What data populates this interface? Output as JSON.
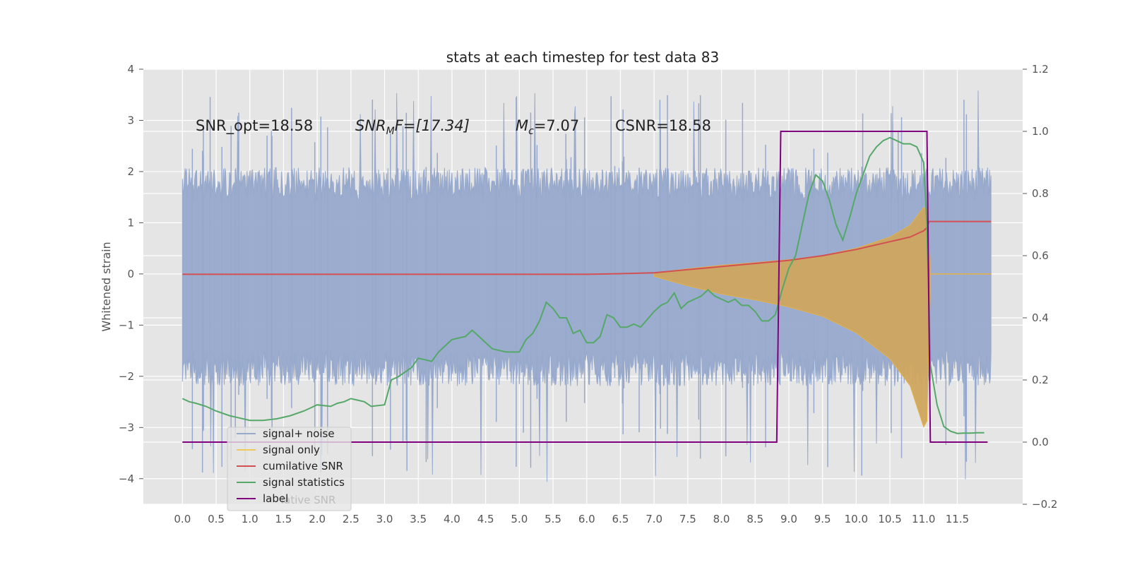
{
  "chart_data": {
    "type": "line",
    "title": "stats at each timestep for test data 83",
    "ylabel": "Whitened strain",
    "xlabel": "",
    "xlim": [
      -0.58,
      12.47
    ],
    "ylim": [
      -4.5,
      4.0
    ],
    "y2lim": [
      -0.2,
      1.2
    ],
    "x_ticks": [
      "0.0",
      "0.5",
      "1.0",
      "1.5",
      "2.0",
      "2.5",
      "3.0",
      "3.5",
      "4.0",
      "4.5",
      "5.0",
      "5.5",
      "6.0",
      "6.5",
      "7.0",
      "7.5",
      "8.0",
      "8.5",
      "9.0",
      "9.5",
      "10.0",
      "10.5",
      "11.0",
      "11.5"
    ],
    "y_ticks": [
      "4",
      "3",
      "2",
      "1",
      "0",
      "−1",
      "−2",
      "−3",
      "−4"
    ],
    "y2_ticks": [
      "1.2",
      "1.0",
      "0.8",
      "0.6",
      "0.4",
      "0.2",
      "0.0",
      "−0.2"
    ],
    "grid": true,
    "legend_position": "lower-left",
    "colors": {
      "noise": "#97a9cc",
      "signal": "#e6b142",
      "signal_fill": "#cfa55e",
      "cumulative": "#d25052",
      "statistics": "#55a868",
      "label": "#800080",
      "plot_bg": "#e5e5e5",
      "grid": "#ffffff"
    },
    "annotations": {
      "snr_opt": "SNR_opt=18.58",
      "snr_mf_base": "SNR",
      "snr_mf_sub": "M",
      "snr_mf_tail": "F=[17.34]",
      "mc_base": "M",
      "mc_sub": "c",
      "mc_tail": "=7.07",
      "csnr": "CSNR=18.58"
    },
    "noise_band": {
      "x_start": 0.0,
      "x_end": 12.0,
      "upper_typical": 1.9,
      "lower_typical": -2.0,
      "upper_max": 3.6,
      "lower_min": -4.1
    },
    "signal_envelope": {
      "x": [
        7.0,
        7.5,
        8.0,
        8.5,
        9.0,
        9.5,
        10.0,
        10.5,
        10.8,
        11.0,
        11.05,
        11.1
      ],
      "amplitude": [
        0.02,
        0.1,
        0.17,
        0.22,
        0.28,
        0.36,
        0.5,
        0.72,
        0.95,
        1.3,
        1.25,
        0.0
      ]
    },
    "series": [
      {
        "name": "cumilative SNR",
        "axis": "right",
        "x": [
          0,
          1,
          2,
          3,
          4,
          5,
          6,
          6.5,
          7.0,
          7.5,
          8.0,
          8.5,
          9.0,
          9.5,
          10.0,
          10.5,
          10.8,
          11.0,
          11.05,
          11.08,
          12.0
        ],
        "values": [
          0.54,
          0.54,
          0.54,
          0.54,
          0.54,
          0.54,
          0.54,
          0.542,
          0.545,
          0.555,
          0.565,
          0.575,
          0.585,
          0.6,
          0.62,
          0.645,
          0.66,
          0.68,
          0.69,
          0.71,
          0.71
        ]
      },
      {
        "name": "signal statistics",
        "axis": "right",
        "x": [
          0.0,
          0.1,
          0.2,
          0.35,
          0.5,
          0.7,
          0.8,
          1.0,
          1.2,
          1.4,
          1.6,
          1.8,
          1.9,
          2.0,
          2.2,
          2.3,
          2.4,
          2.5,
          2.7,
          2.8,
          3.0,
          3.1,
          3.2,
          3.4,
          3.5,
          3.7,
          3.8,
          4.0,
          4.2,
          4.3,
          4.4,
          4.6,
          4.8,
          5.0,
          5.1,
          5.2,
          5.3,
          5.4,
          5.5,
          5.6,
          5.7,
          5.8,
          5.9,
          6.0,
          6.1,
          6.2,
          6.3,
          6.4,
          6.5,
          6.6,
          6.7,
          6.8,
          7.0,
          7.1,
          7.2,
          7.3,
          7.4,
          7.5,
          7.6,
          7.7,
          7.8,
          7.9,
          8.0,
          8.1,
          8.2,
          8.3,
          8.4,
          8.5,
          8.6,
          8.7,
          8.8,
          8.9,
          9.0,
          9.1,
          9.2,
          9.3,
          9.4,
          9.5,
          9.6,
          9.7,
          9.8,
          9.9,
          10.0,
          10.1,
          10.2,
          10.3,
          10.4,
          10.5,
          10.6,
          10.7,
          10.8,
          10.9,
          11.0,
          11.05,
          11.1,
          11.2,
          11.3,
          11.4,
          11.5,
          11.6,
          11.7,
          11.8,
          11.9
        ],
        "values": [
          0.14,
          0.13,
          0.125,
          0.115,
          0.1,
          0.085,
          0.08,
          0.07,
          0.07,
          0.075,
          0.085,
          0.1,
          0.11,
          0.12,
          0.115,
          0.125,
          0.13,
          0.14,
          0.13,
          0.115,
          0.12,
          0.2,
          0.21,
          0.24,
          0.27,
          0.26,
          0.29,
          0.33,
          0.34,
          0.36,
          0.34,
          0.3,
          0.29,
          0.29,
          0.33,
          0.35,
          0.39,
          0.45,
          0.43,
          0.4,
          0.4,
          0.35,
          0.36,
          0.32,
          0.32,
          0.34,
          0.41,
          0.4,
          0.37,
          0.37,
          0.38,
          0.37,
          0.42,
          0.44,
          0.45,
          0.48,
          0.43,
          0.45,
          0.46,
          0.47,
          0.49,
          0.47,
          0.46,
          0.45,
          0.46,
          0.44,
          0.44,
          0.42,
          0.39,
          0.39,
          0.41,
          0.49,
          0.56,
          0.6,
          0.7,
          0.8,
          0.86,
          0.84,
          0.78,
          0.7,
          0.65,
          0.72,
          0.8,
          0.86,
          0.92,
          0.95,
          0.97,
          0.98,
          0.97,
          0.96,
          0.96,
          0.95,
          0.9,
          0.7,
          0.25,
          0.12,
          0.05,
          0.035,
          0.028,
          0.029,
          0.029,
          0.03,
          0.03
        ]
      },
      {
        "name": "label",
        "axis": "right",
        "x": [
          0.0,
          8.82,
          8.88,
          11.05,
          11.1,
          11.95
        ],
        "values": [
          0.0,
          0.0,
          1.0,
          1.0,
          0.0,
          0.0
        ]
      }
    ],
    "legend": [
      {
        "name": "signal+ noise",
        "color": "#97a9cc"
      },
      {
        "name": "signal only",
        "color": "#f0c857"
      },
      {
        "name": "cumilative SNR",
        "color": "#d25052"
      },
      {
        "name": "signal statistics",
        "color": "#55a868"
      },
      {
        "name": "label",
        "color": "#800080"
      }
    ],
    "legend_ghost_text": "lative SNR"
  }
}
